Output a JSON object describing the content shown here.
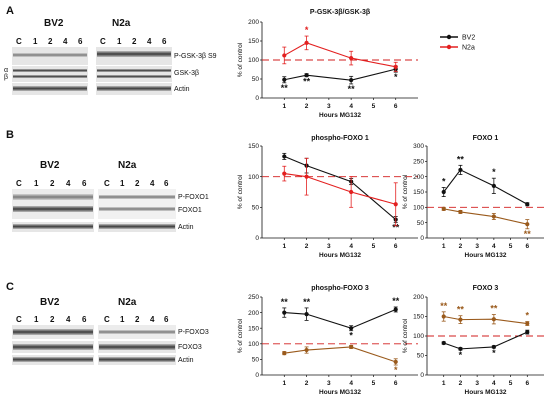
{
  "panel_labels": [
    "A",
    "B",
    "C"
  ],
  "colors": {
    "bv2": "#111111",
    "n2a": "#e32020",
    "n2a_brown": "#9a5a1c",
    "ref_line": "#d21c1c"
  },
  "blots": [
    {
      "id": "A",
      "groups": [
        {
          "title": "BV2",
          "lanes": [
            "C",
            "1",
            "2",
            "4",
            "6"
          ]
        },
        {
          "title": "N2a",
          "lanes": [
            "C",
            "1",
            "2",
            "4",
            "6"
          ]
        }
      ],
      "bands": [
        "P-GSK-3β S9",
        "GSK-3β",
        "Actin"
      ],
      "side_labels": [
        "α",
        "β"
      ]
    },
    {
      "id": "B",
      "groups": [
        {
          "title": "BV2",
          "lanes": [
            "C",
            "1",
            "2",
            "4",
            "6"
          ]
        },
        {
          "title": "N2a",
          "lanes": [
            "C",
            "1",
            "2",
            "4",
            "6"
          ]
        }
      ],
      "bands": [
        "P-FOXO1",
        "FOXO1",
        "Actin"
      ]
    },
    {
      "id": "C",
      "groups": [
        {
          "title": "BV2",
          "lanes": [
            "C",
            "1",
            "2",
            "4",
            "6"
          ]
        },
        {
          "title": "N2a",
          "lanes": [
            "C",
            "1",
            "2",
            "4",
            "6"
          ]
        }
      ],
      "bands": [
        "P-FOXO3",
        "FOXO3",
        "Actin"
      ]
    }
  ],
  "legend": [
    {
      "name": "BV2",
      "color": "#111111"
    },
    {
      "name": "N2a",
      "color": "#e32020"
    }
  ],
  "chart_data": [
    {
      "id": "chartA",
      "type": "line",
      "title": "P-GSK-3β/GSK-3β",
      "xlabel": "Hours MG132",
      "ylabel": "% of control",
      "ylim": [
        0,
        200
      ],
      "yticks": [
        0,
        50,
        100,
        150,
        200
      ],
      "xlim": [
        0,
        7
      ],
      "xticks": [
        1,
        2,
        3,
        4,
        5,
        6
      ],
      "reference_line": 100,
      "series": [
        {
          "name": "BV2",
          "color": "#111111",
          "x": [
            1,
            2,
            4,
            6
          ],
          "y": [
            48,
            60,
            47,
            76
          ],
          "err": [
            8,
            4,
            10,
            8
          ],
          "stars": [
            {
              "x": 1,
              "text": "**",
              "pos": "below"
            },
            {
              "x": 2,
              "text": "**",
              "pos": "below"
            },
            {
              "x": 4,
              "text": "**",
              "pos": "below"
            },
            {
              "x": 6,
              "text": "*",
              "pos": "below"
            }
          ]
        },
        {
          "name": "N2a",
          "color": "#e32020",
          "x": [
            1,
            2,
            4,
            6
          ],
          "y": [
            112,
            145,
            105,
            82
          ],
          "err": [
            22,
            18,
            18,
            12
          ],
          "stars": [
            {
              "x": 2,
              "text": "*",
              "pos": "above"
            }
          ]
        }
      ]
    },
    {
      "id": "chartB1",
      "type": "line",
      "title": "phospho-FOXO 1",
      "xlabel": "Hours MG132",
      "ylabel": "% of control",
      "ylim": [
        0,
        150
      ],
      "yticks": [
        0,
        50,
        100,
        150
      ],
      "xlim": [
        0,
        7
      ],
      "xticks": [
        1,
        2,
        3,
        4,
        5,
        6
      ],
      "reference_line": 100,
      "series": [
        {
          "name": "BV2",
          "color": "#111111",
          "x": [
            1,
            2,
            4,
            6
          ],
          "y": [
            133,
            118,
            92,
            30
          ],
          "err": [
            5,
            12,
            5,
            5
          ],
          "stars": [
            {
              "x": 6,
              "text": "**",
              "pos": "below"
            }
          ]
        },
        {
          "name": "N2a",
          "color": "#e32020",
          "x": [
            1,
            2,
            4,
            6
          ],
          "y": [
            105,
            100,
            75,
            55
          ],
          "err": [
            12,
            30,
            25,
            35
          ],
          "stars": []
        }
      ]
    },
    {
      "id": "chartB2",
      "type": "line",
      "title": "FOXO 1",
      "xlabel": "Hours MG132",
      "ylabel": "% of control",
      "ylim": [
        0,
        300
      ],
      "yticks": [
        0,
        50,
        100,
        150,
        200,
        250,
        300
      ],
      "xlim": [
        0,
        7
      ],
      "xticks": [
        1,
        2,
        3,
        4,
        5,
        6
      ],
      "reference_line": 100,
      "series": [
        {
          "name": "BV2",
          "color": "#111111",
          "x": [
            1,
            2,
            4,
            6
          ],
          "y": [
            150,
            222,
            170,
            110
          ],
          "err": [
            15,
            15,
            25,
            5
          ],
          "stars": [
            {
              "x": 1,
              "text": "*",
              "pos": "above"
            },
            {
              "x": 2,
              "text": "**",
              "pos": "above"
            },
            {
              "x": 4,
              "text": "*",
              "pos": "above"
            }
          ]
        },
        {
          "name": "N2a",
          "color": "#9a5a1c",
          "x": [
            1,
            2,
            4,
            6
          ],
          "y": [
            95,
            85,
            70,
            45
          ],
          "err": [
            5,
            5,
            10,
            15
          ],
          "stars": [
            {
              "x": 6,
              "text": "**",
              "pos": "below"
            }
          ]
        }
      ]
    },
    {
      "id": "chartC1",
      "type": "line",
      "title": "phospho-FOXO 3",
      "xlabel": "Hours MG132",
      "ylabel": "% of control",
      "ylim": [
        0,
        250
      ],
      "yticks": [
        0,
        50,
        100,
        150,
        200,
        250
      ],
      "xlim": [
        0,
        7
      ],
      "xticks": [
        1,
        2,
        3,
        4,
        5,
        6
      ],
      "reference_line": 100,
      "series": [
        {
          "name": "BV2",
          "color": "#111111",
          "x": [
            1,
            2,
            4,
            6
          ],
          "y": [
            200,
            195,
            150,
            210
          ],
          "err": [
            15,
            20,
            8,
            8
          ],
          "stars": [
            {
              "x": 1,
              "text": "**",
              "pos": "above"
            },
            {
              "x": 2,
              "text": "**",
              "pos": "above"
            },
            {
              "x": 4,
              "text": "*",
              "pos": "below"
            },
            {
              "x": 6,
              "text": "**",
              "pos": "above"
            }
          ]
        },
        {
          "name": "N2a",
          "color": "#9a5a1c",
          "x": [
            1,
            2,
            4,
            6
          ],
          "y": [
            70,
            80,
            90,
            42
          ],
          "err": [
            5,
            10,
            5,
            10
          ],
          "stars": [
            {
              "x": 6,
              "text": "*",
              "pos": "below"
            }
          ]
        }
      ]
    },
    {
      "id": "chartC2",
      "type": "line",
      "title": "FOXO 3",
      "xlabel": "Hours MG132",
      "ylabel": "% of control",
      "ylim": [
        0,
        200
      ],
      "yticks": [
        0,
        50,
        100,
        150,
        200
      ],
      "xlim": [
        0,
        7
      ],
      "xticks": [
        1,
        2,
        3,
        4,
        5,
        6
      ],
      "reference_line": 100,
      "series": [
        {
          "name": "BV2",
          "color": "#111111",
          "x": [
            1,
            2,
            4,
            6
          ],
          "y": [
            82,
            67,
            72,
            110
          ],
          "err": [
            3,
            3,
            3,
            5
          ],
          "stars": [
            {
              "x": 2,
              "text": "*",
              "pos": "below"
            },
            {
              "x": 4,
              "text": "*",
              "pos": "below"
            }
          ]
        },
        {
          "name": "N2a",
          "color": "#9a5a1c",
          "x": [
            1,
            2,
            4,
            6
          ],
          "y": [
            150,
            142,
            143,
            132
          ],
          "err": [
            12,
            10,
            12,
            5
          ],
          "stars": [
            {
              "x": 1,
              "text": "**",
              "pos": "above"
            },
            {
              "x": 2,
              "text": "**",
              "pos": "above"
            },
            {
              "x": 4,
              "text": "**",
              "pos": "above"
            },
            {
              "x": 6,
              "text": "*",
              "pos": "above"
            }
          ]
        }
      ]
    }
  ]
}
